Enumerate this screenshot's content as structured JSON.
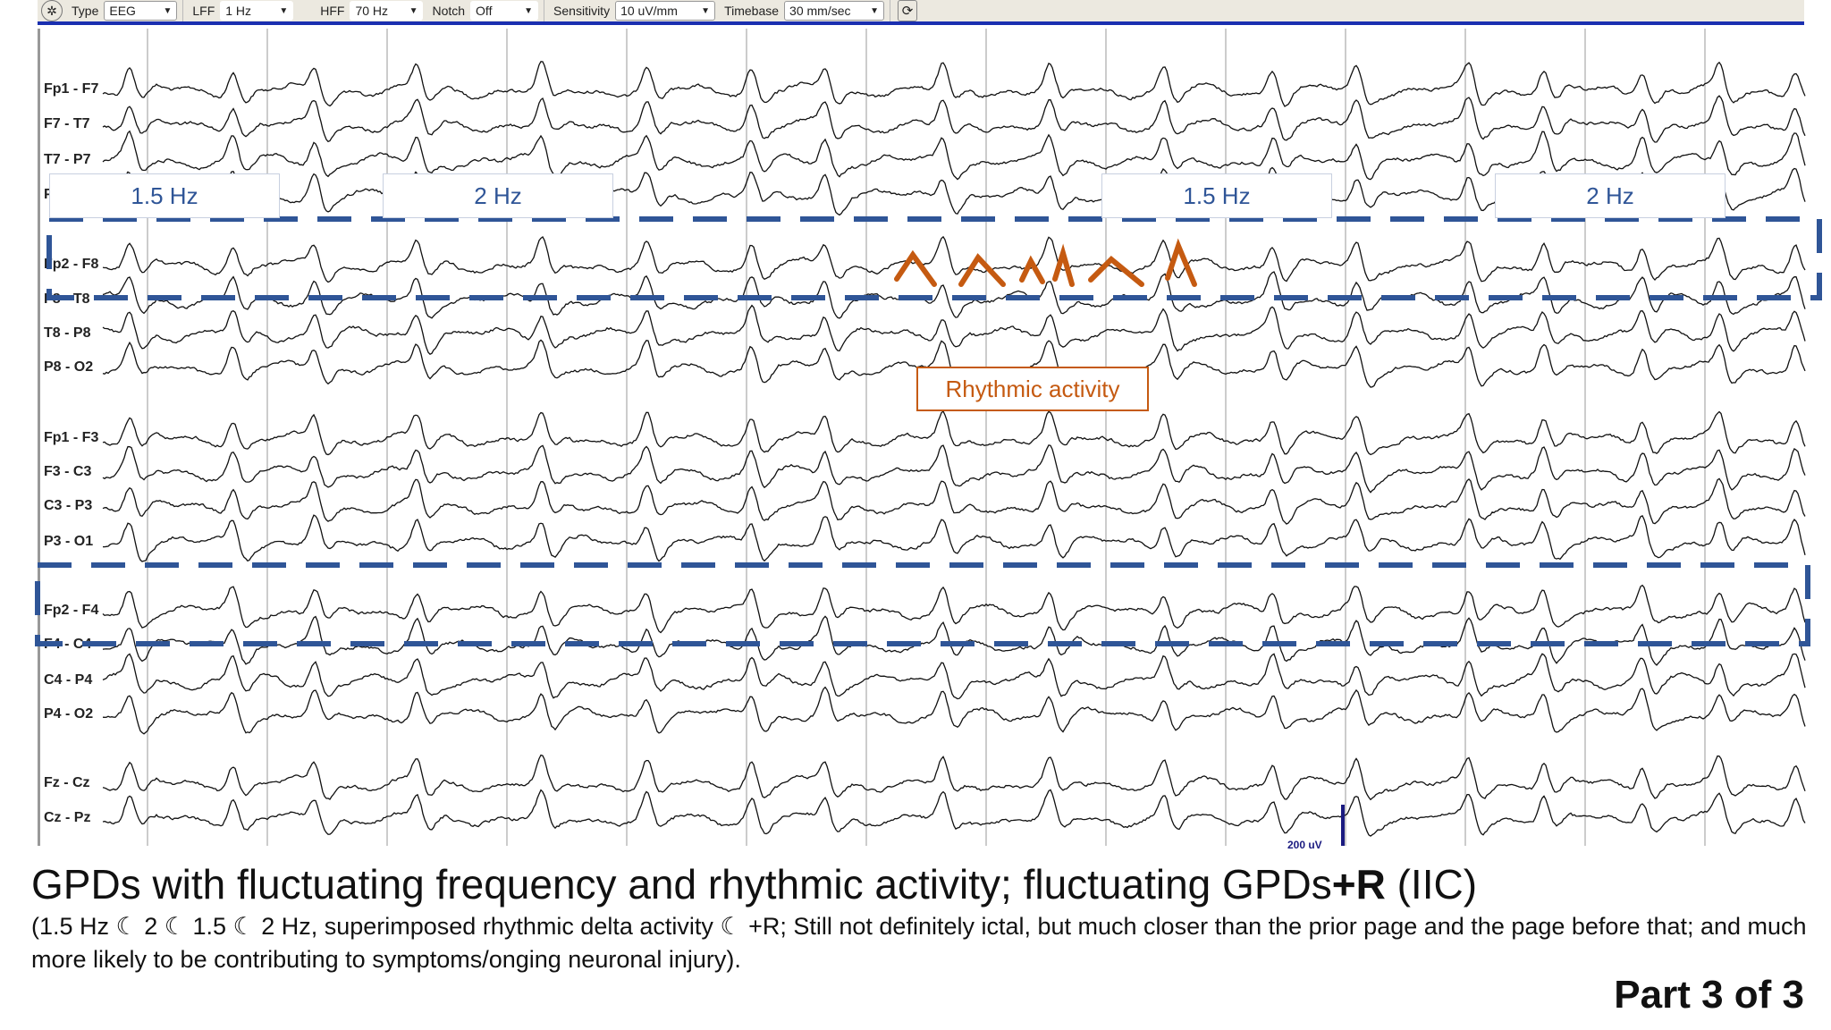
{
  "toolbar": {
    "type_label": "Type",
    "type_value": "EEG",
    "lff_label": "LFF",
    "lff_value": "1 Hz",
    "hff_label": "HFF",
    "hff_value": "70 Hz",
    "notch_label": "Notch",
    "notch_value": "Off",
    "sensitivity_label": "Sensitivity",
    "sensitivity_value": "10 uV/mm",
    "timebase_label": "Timebase",
    "timebase_value": "30 mm/sec",
    "icons": [
      "montage-icon",
      "refresh-icon"
    ]
  },
  "channels": [
    "Fp1 - F7",
    "F7 - T7",
    "T7 - P7",
    "P7 - O1",
    "Fp2 - F8",
    "F8 - T8",
    "T8 - P8",
    "P8 - O2",
    "Fp1 - F3",
    "F3 - C3",
    "C3 - P3",
    "P3 - O1",
    "Fp2 - F4",
    "F4 - C4",
    "C4 - P4",
    "P4 - O2",
    "Fz - Cz",
    "Cz - Pz"
  ],
  "annotations": {
    "freq_labels": [
      "1.5 Hz",
      "2 Hz",
      "1.5 Hz",
      "2 Hz"
    ],
    "rhythmic_label": "Rhythmic activity",
    "box_color": "#2f5597",
    "rhythmic_color": "#c55a11"
  },
  "scale_label": "200 uV",
  "caption": {
    "title_main": "GPDs with fluctuating frequency and rhythmic activity; fluctuating GPDs",
    "title_bold": "+R",
    "title_end": " (IIC)",
    "subtitle": "(1.5 Hz ☾ 2 ☾ 1.5 ☾ 2 Hz, superimposed rhythmic delta activity ☾ +R;  Still not definitely ictal, but much closer than the prior page and the page before that; and much more likely to be contributing to symptoms/onging neuronal injury).",
    "part": "Part 3 of 3"
  }
}
